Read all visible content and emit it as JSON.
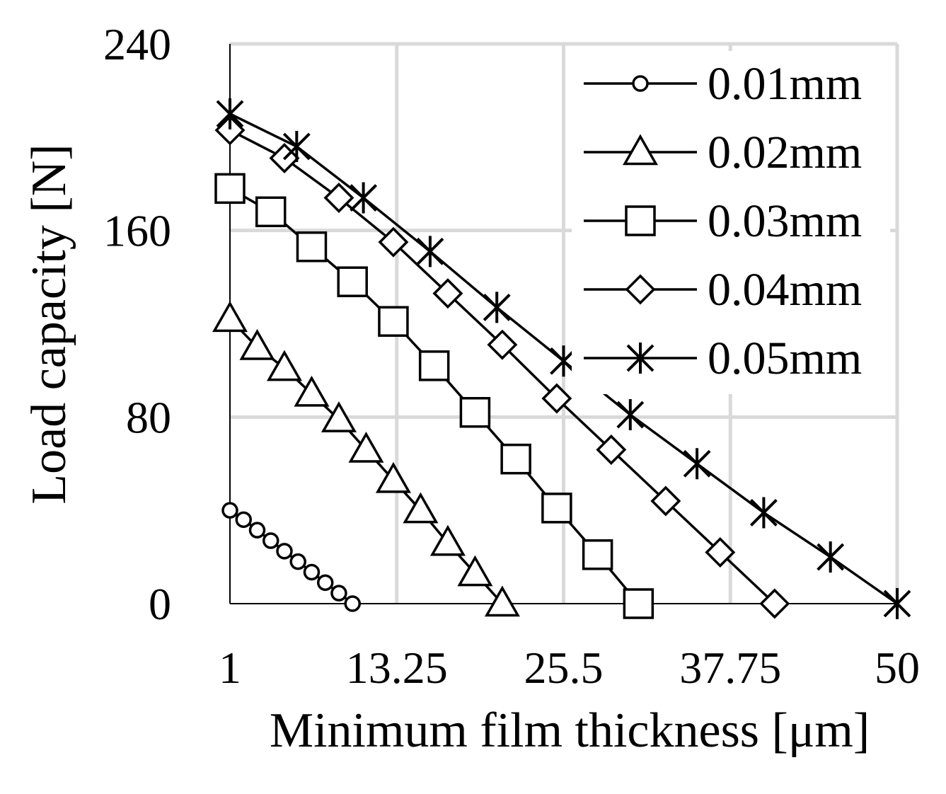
{
  "chart_data": {
    "type": "line",
    "xlabel": "Minimum film thickness [μm]",
    "ylabel": "Load capacity [N]",
    "xlim": [
      1,
      50
    ],
    "ylim": [
      0,
      240
    ],
    "xticks": [
      "1",
      "13.25",
      "25.5",
      "37.75",
      "50"
    ],
    "yticks": [
      "0",
      "80",
      "160",
      "240"
    ],
    "grid": true,
    "legend_position": "top-right",
    "series": [
      {
        "name": "0.01mm",
        "marker": "circle",
        "x": [
          1,
          2,
          3,
          4,
          5,
          6,
          7,
          8,
          9,
          10
        ],
        "y": [
          40,
          36,
          31.5,
          27,
          22.5,
          18,
          13.5,
          9,
          4.5,
          0
        ]
      },
      {
        "name": "0.02mm",
        "marker": "triangle",
        "x": [
          1,
          3,
          5,
          7,
          9,
          11,
          13,
          15,
          17,
          19,
          21
        ],
        "y": [
          122,
          110,
          101,
          90,
          79,
          66,
          53,
          40,
          26,
          13,
          0
        ]
      },
      {
        "name": "0.03mm",
        "marker": "square",
        "x": [
          1,
          4,
          7,
          10,
          13,
          16,
          19,
          22,
          25,
          28,
          31
        ],
        "y": [
          178,
          168,
          153,
          138,
          121,
          102,
          82,
          62,
          41,
          21,
          0
        ]
      },
      {
        "name": "0.04mm",
        "marker": "diamond",
        "x": [
          1,
          5,
          9,
          13,
          17,
          21,
          25,
          29,
          33,
          37,
          41
        ],
        "y": [
          203,
          191,
          174,
          155,
          133,
          111,
          88,
          66,
          44,
          22,
          0
        ]
      },
      {
        "name": "0.05mm",
        "marker": "star",
        "x": [
          1,
          5.9,
          10.8,
          15.7,
          20.6,
          25.5,
          30.4,
          35.3,
          40.2,
          45.1,
          50
        ],
        "y": [
          210,
          196,
          174,
          151,
          127,
          104,
          81,
          60,
          39,
          20,
          0
        ]
      }
    ]
  }
}
